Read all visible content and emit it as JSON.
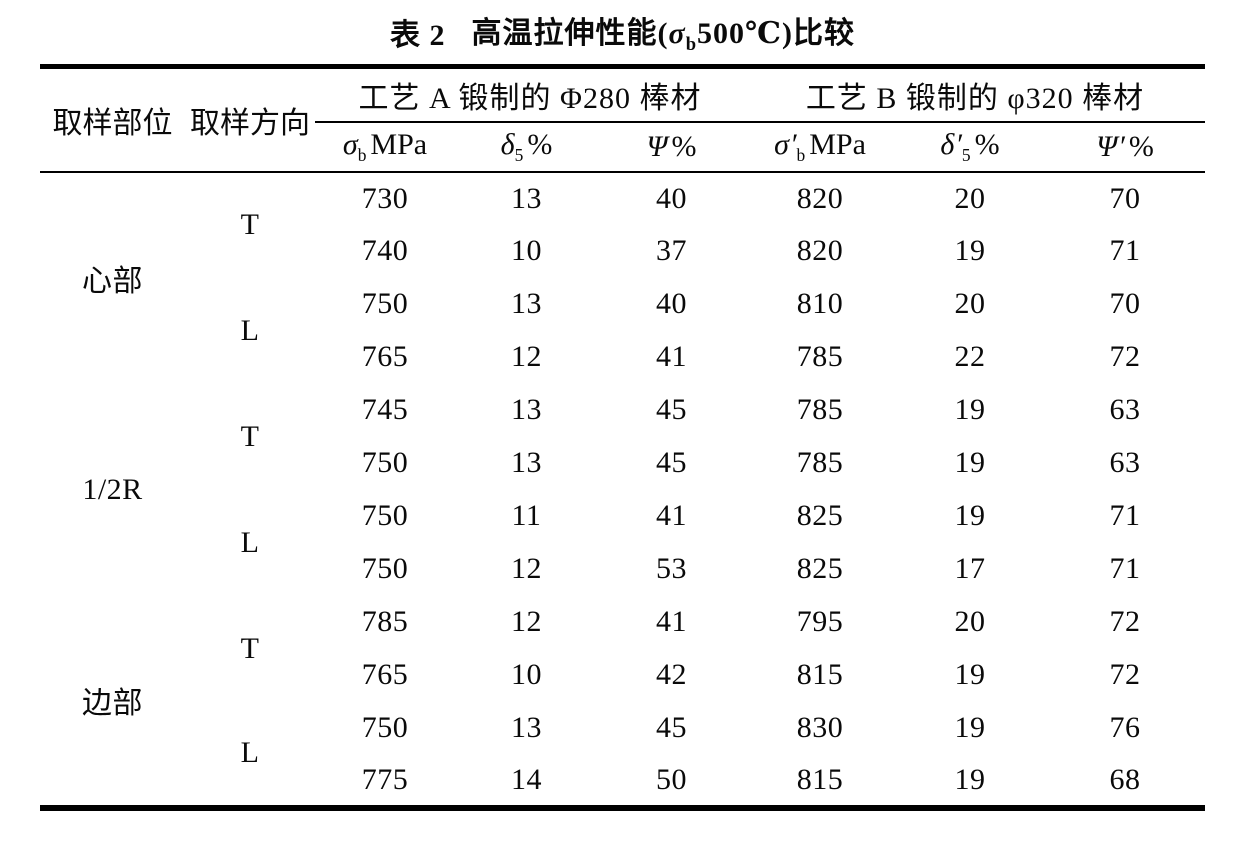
{
  "title": {
    "label": "表 2",
    "text_before": "高温拉伸性能(",
    "sigma": "σ",
    "sigma_sub": "b",
    "text_after": "500℃)比较"
  },
  "table": {
    "col_part": "取样部位",
    "col_direction": "取样方向",
    "group_a": "工艺 A 锻制的 Φ280 棒材",
    "group_b": "工艺 B 锻制的 φ320 棒材",
    "sub_headers": [
      {
        "sym": "σ",
        "prime": "",
        "sub": "b",
        "unit": "MPa"
      },
      {
        "sym": "δ",
        "prime": "",
        "sub": "5",
        "unit": "%"
      },
      {
        "sym": "Ψ",
        "prime": "",
        "sub": "",
        "unit": "%"
      },
      {
        "sym": "σ",
        "prime": "′",
        "sub": "b",
        "unit": "MPa"
      },
      {
        "sym": "δ",
        "prime": "′",
        "sub": "5",
        "unit": "%"
      },
      {
        "sym": "Ψ",
        "prime": "′",
        "sub": "",
        "unit": "%"
      }
    ],
    "sections": [
      {
        "part": "心部",
        "direction_groups": [
          {
            "direction": "T",
            "rows": [
              [
                730,
                13,
                40,
                820,
                20,
                70
              ],
              [
                740,
                10,
                37,
                820,
                19,
                71
              ]
            ]
          },
          {
            "direction": "L",
            "rows": [
              [
                750,
                13,
                40,
                810,
                20,
                70
              ],
              [
                765,
                12,
                41,
                785,
                22,
                72
              ]
            ]
          }
        ]
      },
      {
        "part": "1/2R",
        "direction_groups": [
          {
            "direction": "T",
            "rows": [
              [
                745,
                13,
                45,
                785,
                19,
                63
              ],
              [
                750,
                13,
                45,
                785,
                19,
                63
              ]
            ]
          },
          {
            "direction": "L",
            "rows": [
              [
                750,
                11,
                41,
                825,
                19,
                71
              ],
              [
                750,
                12,
                53,
                825,
                17,
                71
              ]
            ]
          }
        ]
      },
      {
        "part": "边部",
        "direction_groups": [
          {
            "direction": "T",
            "rows": [
              [
                785,
                12,
                41,
                795,
                20,
                72
              ],
              [
                765,
                10,
                42,
                815,
                19,
                72
              ]
            ]
          },
          {
            "direction": "L",
            "rows": [
              [
                750,
                13,
                45,
                830,
                19,
                76
              ],
              [
                775,
                14,
                50,
                815,
                19,
                68
              ]
            ]
          }
        ]
      }
    ]
  },
  "chart_data": {
    "type": "table",
    "title": "表2 高温拉伸性能(σb500℃)比较",
    "columns": [
      "取样部位",
      "取样方向",
      "σb MPa",
      "δ5 %",
      "Ψ%",
      "σ′b MPa",
      "δ′5 %",
      "Ψ′%"
    ],
    "rows": [
      [
        "心部",
        "T",
        730,
        13,
        40,
        820,
        20,
        70
      ],
      [
        "心部",
        "T",
        740,
        10,
        37,
        820,
        19,
        71
      ],
      [
        "心部",
        "L",
        750,
        13,
        40,
        810,
        20,
        70
      ],
      [
        "心部",
        "L",
        765,
        12,
        41,
        785,
        22,
        72
      ],
      [
        "1/2R",
        "T",
        745,
        13,
        45,
        785,
        19,
        63
      ],
      [
        "1/2R",
        "T",
        750,
        13,
        45,
        785,
        19,
        63
      ],
      [
        "1/2R",
        "L",
        750,
        11,
        41,
        825,
        19,
        71
      ],
      [
        "1/2R",
        "L",
        750,
        12,
        53,
        825,
        17,
        71
      ],
      [
        "边部",
        "T",
        785,
        12,
        41,
        795,
        20,
        72
      ],
      [
        "边部",
        "T",
        765,
        10,
        42,
        815,
        19,
        72
      ],
      [
        "边部",
        "L",
        750,
        13,
        45,
        830,
        19,
        76
      ],
      [
        "边部",
        "L",
        775,
        14,
        50,
        815,
        19,
        68
      ]
    ]
  }
}
